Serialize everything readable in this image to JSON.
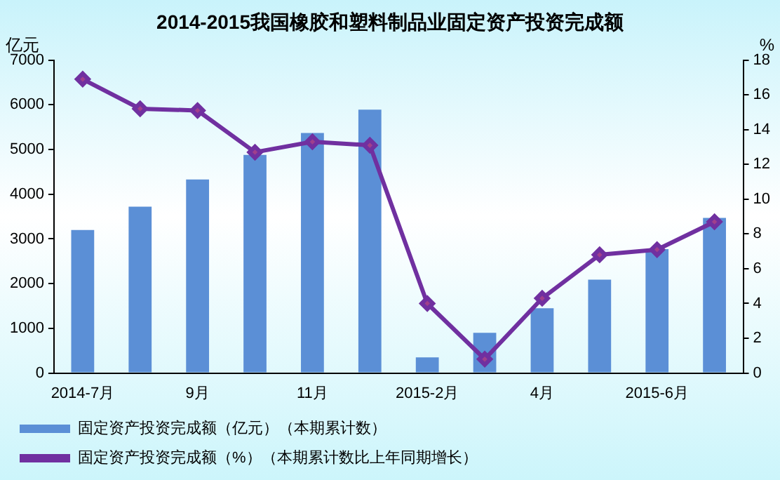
{
  "chart_data": {
    "type": "bar",
    "title": "2014-2015我国橡胶和塑料制品业固定资产投资完成额",
    "ylabel": "亿元",
    "y2label": "%",
    "categories": [
      "2014-7月",
      null,
      "9月",
      null,
      "11月",
      null,
      "2015-2月",
      null,
      "4月",
      null,
      "2015-6月",
      null
    ],
    "series": [
      {
        "name": "固定资产投资完成额（亿元）（本期累计数）",
        "color": "#5b8fd6",
        "values": [
          3200,
          3720,
          4330,
          4880,
          5370,
          5890,
          350,
          900,
          1450,
          2090,
          2770,
          3470
        ]
      },
      {
        "name": "固定资产投资完成额（%）（本期累计数比上年同期增长）",
        "type": "line",
        "axis": "y2",
        "color": "#7030a0",
        "marker": "diamond",
        "values": [
          16.9,
          15.2,
          15.1,
          12.7,
          13.3,
          13.1,
          4.0,
          0.8,
          4.3,
          6.8,
          7.1,
          8.7
        ]
      }
    ],
    "ylim": [
      0,
      7000
    ],
    "yticks": [
      0,
      1000,
      2000,
      3000,
      4000,
      5000,
      6000,
      7000
    ],
    "y2lim": [
      0,
      18
    ],
    "y2ticks": [
      0,
      2,
      4,
      6,
      8,
      10,
      12,
      14,
      16,
      18
    ],
    "grid": false,
    "legend": "bottom"
  }
}
